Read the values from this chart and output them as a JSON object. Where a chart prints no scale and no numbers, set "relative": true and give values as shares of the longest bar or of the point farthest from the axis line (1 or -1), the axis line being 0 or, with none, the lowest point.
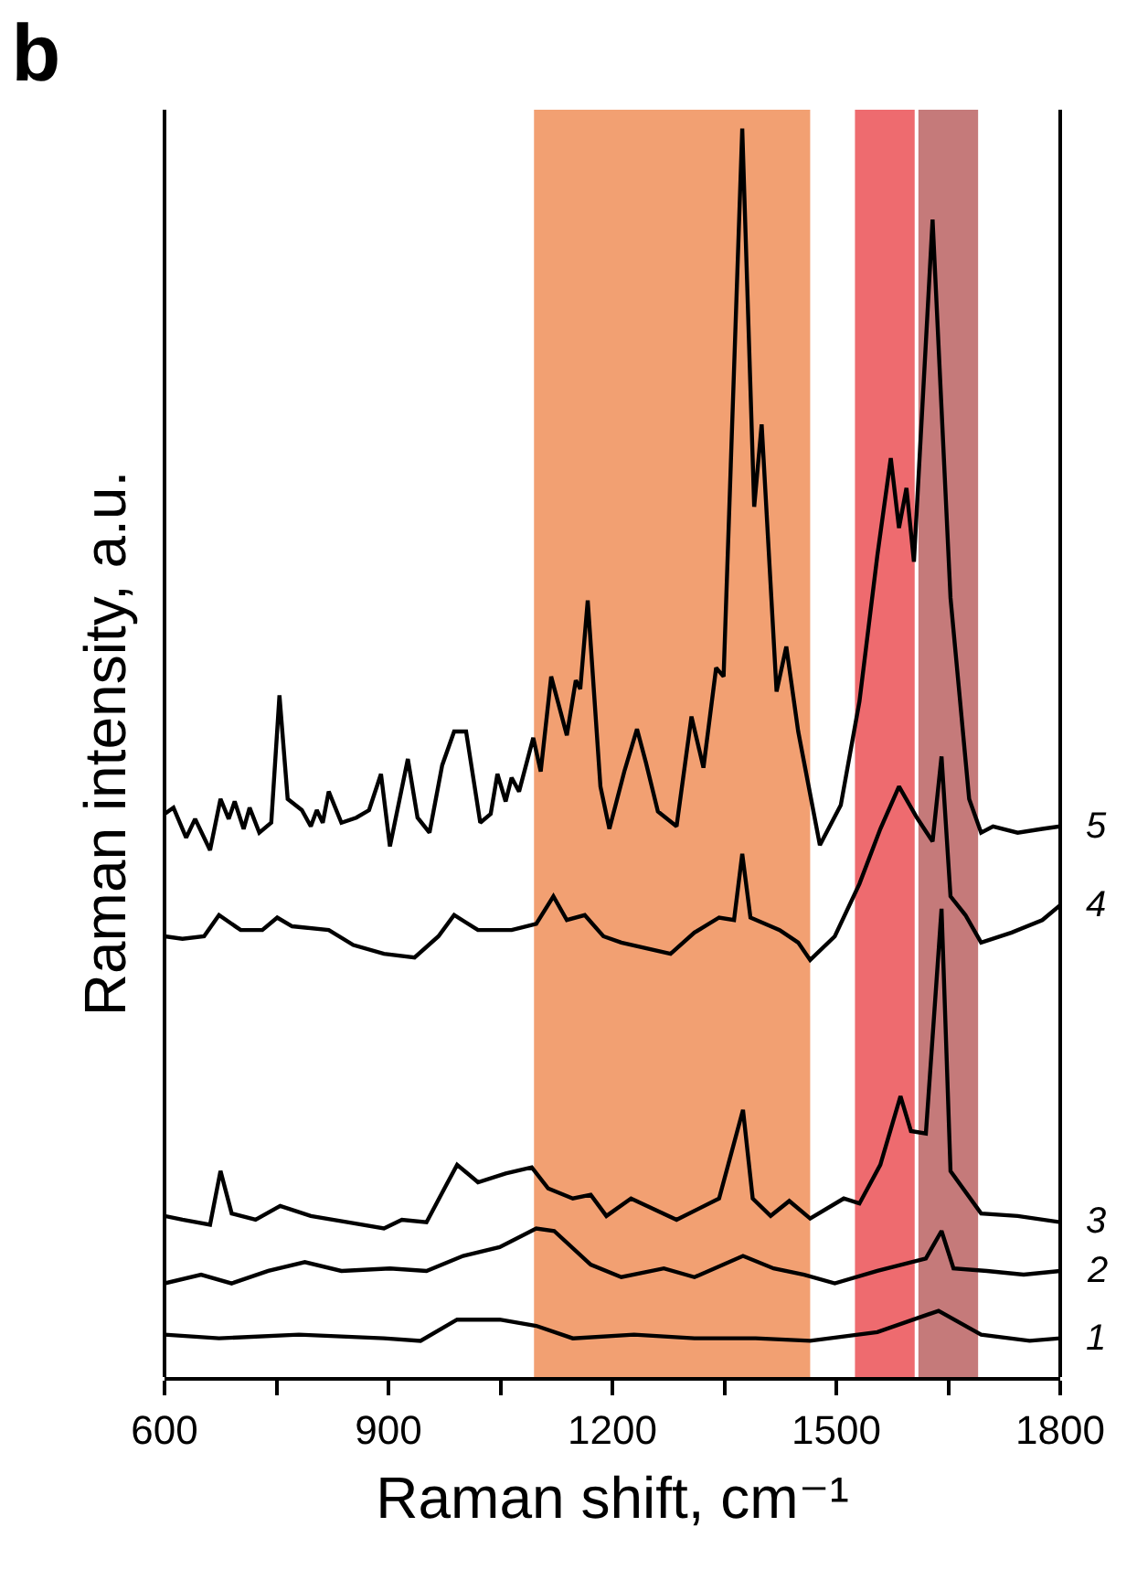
{
  "chart_data": {
    "type": "line",
    "title": "b",
    "xlabel": "Raman shift, cm⁻¹",
    "ylabel": "Raman intensity, a.u.",
    "relative": true,
    "xlim": [
      600,
      1800
    ],
    "xticks": [
      600,
      {
        "value": 750,
        "label": null
      },
      900,
      {
        "value": 1050,
        "label": null
      },
      1200,
      {
        "value": 1350,
        "label": null
      },
      1500,
      {
        "value": 1650,
        "label": null
      },
      1800
    ],
    "grid": false,
    "legend": false,
    "marker": "none",
    "line_style": "solid",
    "bands": [
      {
        "axis": "x",
        "from": 1095,
        "to": 1465,
        "color": "#f2a072"
      },
      {
        "axis": "x",
        "from": 1525,
        "to": 1605,
        "color": "#ee6b6f"
      },
      {
        "axis": "x",
        "from": 1610,
        "to": 1690,
        "color": "#c57a7a"
      }
    ],
    "series": [
      {
        "name": "5",
        "color": "#000000",
        "x": [
          600,
          612,
          629,
          641,
          661,
          675,
          686,
          694,
          706,
          714,
          727,
          743,
          754,
          765,
          784,
          796,
          804,
          812,
          820,
          837,
          857,
          874,
          890,
          902,
          926,
          939,
          955,
          972,
          988,
          1004,
          1023,
          1037,
          1046,
          1057,
          1065,
          1075,
          1094,
          1104,
          1118,
          1139,
          1151,
          1157,
          1167,
          1184,
          1196,
          1216,
          1233,
          1245,
          1261,
          1286,
          1306,
          1322,
          1339,
          1349,
          1374,
          1390,
          1400,
          1420,
          1433,
          1449,
          1478,
          1506,
          1531,
          1555,
          1573,
          1584,
          1594,
          1604,
          1629,
          1653,
          1678,
          1694,
          1710,
          1743,
          1776,
          1800
        ],
        "values": [
          0.451,
          0.456,
          0.432,
          0.447,
          0.422,
          0.463,
          0.447,
          0.461,
          0.439,
          0.456,
          0.436,
          0.444,
          0.546,
          0.463,
          0.454,
          0.441,
          0.454,
          0.444,
          0.469,
          0.444,
          0.448,
          0.454,
          0.483,
          0.425,
          0.495,
          0.448,
          0.436,
          0.49,
          0.517,
          0.517,
          0.444,
          0.451,
          0.483,
          0.461,
          0.48,
          0.469,
          0.512,
          0.485,
          0.561,
          0.514,
          0.558,
          0.551,
          0.622,
          0.473,
          0.439,
          0.485,
          0.519,
          0.492,
          0.453,
          0.441,
          0.529,
          0.488,
          0.568,
          0.561,
          1.0,
          0.697,
          0.763,
          0.549,
          0.585,
          0.517,
          0.426,
          0.458,
          0.541,
          0.658,
          0.736,
          0.68,
          0.712,
          0.653,
          0.927,
          0.624,
          0.463,
          0.436,
          0.441,
          0.436,
          0.439,
          0.441
        ]
      },
      {
        "name": "4",
        "color": "#000000",
        "x": [
          600,
          624,
          653,
          673,
          702,
          731,
          751,
          771,
          820,
          853,
          894,
          935,
          967,
          988,
          1020,
          1065,
          1098,
          1121,
          1139,
          1163,
          1188,
          1212,
          1278,
          1310,
          1343,
          1363,
          1374,
          1385,
          1424,
          1449,
          1465,
          1498,
          1531,
          1559,
          1584,
          1608,
          1629,
          1641,
          1653,
          1673,
          1694,
          1735,
          1776,
          1800
        ],
        "values": [
          0.353,
          0.351,
          0.353,
          0.37,
          0.358,
          0.358,
          0.368,
          0.361,
          0.358,
          0.346,
          0.339,
          0.336,
          0.353,
          0.37,
          0.358,
          0.358,
          0.363,
          0.385,
          0.366,
          0.37,
          0.353,
          0.348,
          0.339,
          0.356,
          0.368,
          0.366,
          0.419,
          0.368,
          0.358,
          0.348,
          0.334,
          0.353,
          0.395,
          0.439,
          0.473,
          0.448,
          0.429,
          0.497,
          0.385,
          0.37,
          0.348,
          0.356,
          0.366,
          0.378
        ]
      },
      {
        "name": "3",
        "color": "#000000",
        "x": [
          600,
          624,
          661,
          675,
          690,
          722,
          755,
          796,
          845,
          894,
          918,
          951,
          975,
          992,
          1020,
          1057,
          1092,
          1114,
          1147,
          1171,
          1192,
          1225,
          1286,
          1343,
          1375,
          1388,
          1412,
          1437,
          1465,
          1510,
          1531,
          1559,
          1586,
          1600,
          1620,
          1641,
          1653,
          1694,
          1743,
          1800
        ],
        "values": [
          0.129,
          0.126,
          0.122,
          0.165,
          0.131,
          0.126,
          0.137,
          0.129,
          0.124,
          0.119,
          0.126,
          0.124,
          0.151,
          0.17,
          0.156,
          0.163,
          0.168,
          0.151,
          0.143,
          0.146,
          0.129,
          0.143,
          0.126,
          0.143,
          0.214,
          0.143,
          0.129,
          0.141,
          0.127,
          0.143,
          0.139,
          0.17,
          0.225,
          0.197,
          0.195,
          0.375,
          0.165,
          0.131,
          0.129,
          0.124
        ]
      },
      {
        "name": "2",
        "color": "#000000",
        "x": [
          600,
          649,
          690,
          739,
          788,
          837,
          902,
          951,
          1000,
          1049,
          1098,
          1122,
          1171,
          1212,
          1269,
          1310,
          1375,
          1416,
          1457,
          1498,
          1555,
          1620,
          1641,
          1657,
          1702,
          1751,
          1800
        ],
        "values": [
          0.075,
          0.082,
          0.075,
          0.085,
          0.092,
          0.085,
          0.087,
          0.085,
          0.097,
          0.104,
          0.119,
          0.117,
          0.09,
          0.08,
          0.087,
          0.08,
          0.097,
          0.087,
          0.082,
          0.075,
          0.085,
          0.095,
          0.117,
          0.087,
          0.085,
          0.082,
          0.085
        ]
      },
      {
        "name": "1",
        "color": "#000000",
        "x": [
          600,
          673,
          780,
          894,
          943,
          992,
          1049,
          1098,
          1147,
          1229,
          1310,
          1392,
          1465,
          1555,
          1637,
          1694,
          1759,
          1800
        ],
        "values": [
          0.034,
          0.031,
          0.034,
          0.031,
          0.029,
          0.046,
          0.046,
          0.041,
          0.031,
          0.034,
          0.031,
          0.031,
          0.029,
          0.036,
          0.053,
          0.034,
          0.029,
          0.031
        ]
      }
    ]
  }
}
